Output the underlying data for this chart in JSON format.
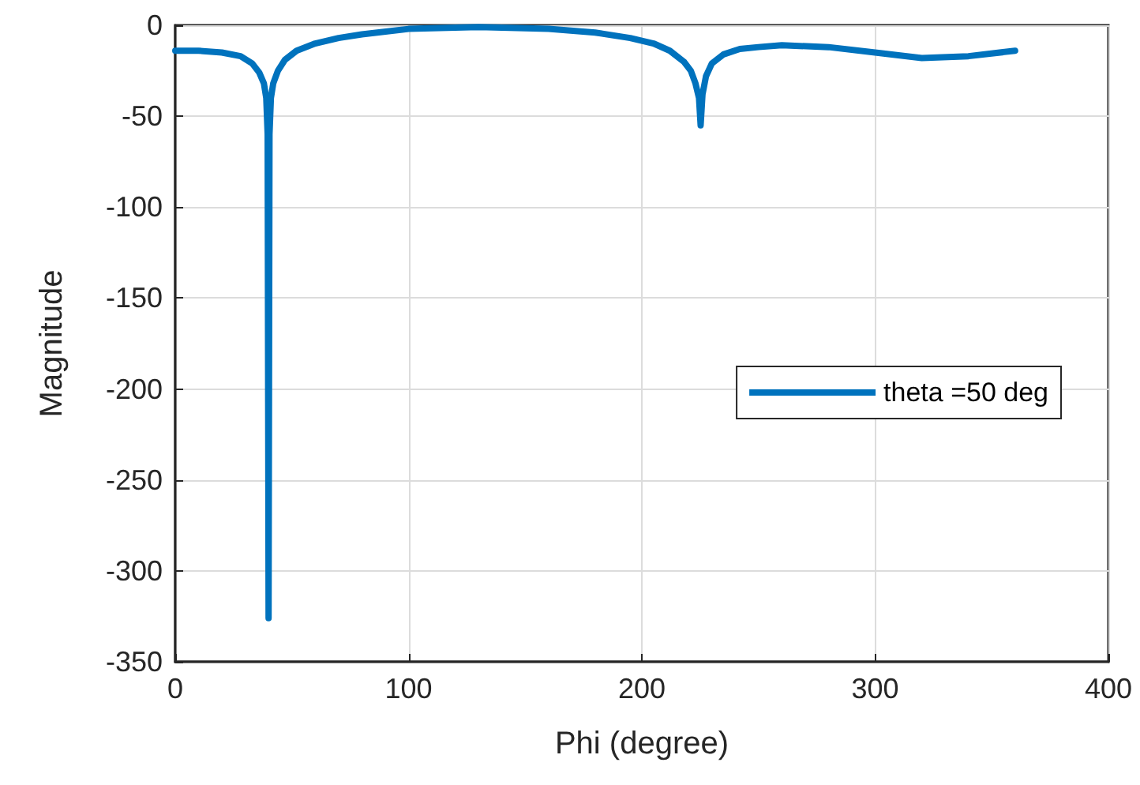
{
  "chart_data": {
    "type": "line",
    "xlabel": "Phi (degree)",
    "ylabel": "Magnitude",
    "xlim": [
      0,
      400
    ],
    "xticks": [
      0,
      100,
      200,
      300,
      400
    ],
    "ylim": [
      -350,
      0
    ],
    "yticks": [
      -350,
      -300,
      -250,
      -200,
      -150,
      -100,
      -50,
      0
    ],
    "grid": true,
    "legend": "right",
    "marker": "none",
    "line_style": "solid",
    "series": [
      {
        "name": "theta =50 deg",
        "color": "#0072bd",
        "x": [
          0,
          10,
          20,
          28,
          33,
          36,
          38,
          39,
          39.6,
          40,
          40.4,
          41,
          42,
          44,
          47,
          52,
          60,
          70,
          80,
          100,
          130,
          160,
          180,
          195,
          205,
          212,
          218,
          221,
          223,
          224.5,
          225.2,
          226,
          227.5,
          230,
          235,
          242,
          250,
          260,
          280,
          300,
          320,
          340,
          360
        ],
        "values": [
          -14,
          -14,
          -15,
          -17,
          -21,
          -26,
          -32,
          -40,
          -60,
          -326,
          -60,
          -40,
          -32,
          -25,
          -19,
          -14,
          -10,
          -7,
          -5,
          -2,
          -1,
          -2,
          -4,
          -7,
          -10,
          -14,
          -20,
          -25,
          -32,
          -40,
          -55,
          -38,
          -28,
          -21,
          -16,
          -13,
          -12,
          -11,
          -12,
          -15,
          -18,
          -17,
          -14
        ]
      }
    ]
  }
}
